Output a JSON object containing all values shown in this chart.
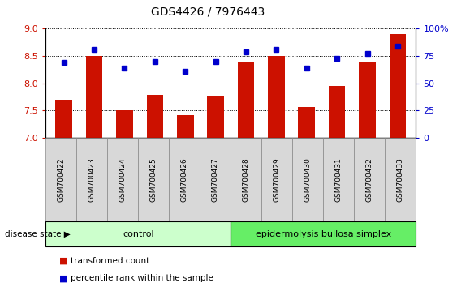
{
  "title": "GDS4426 / 7976443",
  "samples": [
    "GSM700422",
    "GSM700423",
    "GSM700424",
    "GSM700425",
    "GSM700426",
    "GSM700427",
    "GSM700428",
    "GSM700429",
    "GSM700430",
    "GSM700431",
    "GSM700432",
    "GSM700433"
  ],
  "bar_values": [
    7.7,
    8.5,
    7.5,
    7.78,
    7.42,
    7.75,
    8.4,
    8.5,
    7.57,
    7.95,
    8.38,
    8.9
  ],
  "dot_values": [
    8.38,
    8.62,
    8.28,
    8.4,
    8.22,
    8.4,
    8.58,
    8.62,
    8.28,
    8.45,
    8.55,
    8.68
  ],
  "bar_color": "#cc1100",
  "dot_color": "#0000cc",
  "ylim_left": [
    7,
    9
  ],
  "ylim_right": [
    0,
    100
  ],
  "yticks_left": [
    7,
    7.5,
    8,
    8.5,
    9
  ],
  "yticks_right": [
    0,
    25,
    50,
    75,
    100
  ],
  "control_count": 6,
  "disease_count": 6,
  "group1_label": "control",
  "group2_label": "epidermolysis bullosa simplex",
  "group1_color": "#ccffcc",
  "group2_color": "#66ee66",
  "disease_state_label": "disease state",
  "legend1": "transformed count",
  "legend2": "percentile rank within the sample",
  "bar_bottom": 7.0,
  "label_bg_color": "#d8d8d8",
  "label_border_color": "#888888"
}
